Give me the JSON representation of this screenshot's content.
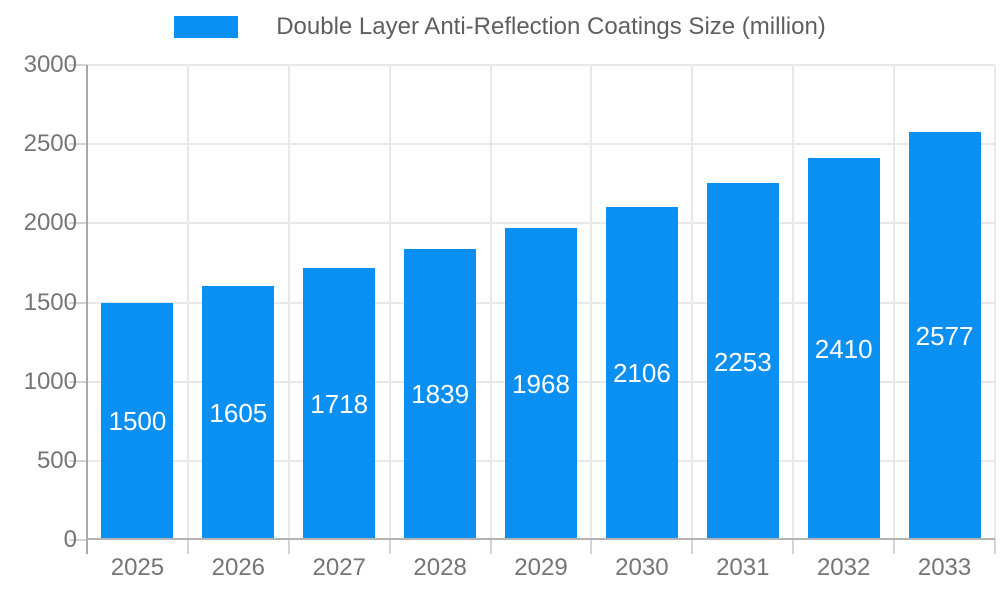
{
  "colors": {
    "bar": "#0a8ff2",
    "grid": "#e9e9e9",
    "axis": "#a8a8a8",
    "tick": "#d4d4d4",
    "axis_label_text": "#757575",
    "legend_text": "#5f5f5f",
    "value_label_text": "#ffffff",
    "background": "#ffffff"
  },
  "legend": {
    "label": "Double Layer Anti-Reflection Coatings Size (million)"
  },
  "chart_data": {
    "type": "bar",
    "title": "Double Layer Anti-Reflection Coatings Size (million)",
    "categories": [
      "2025",
      "2026",
      "2027",
      "2028",
      "2029",
      "2030",
      "2031",
      "2032",
      "2033"
    ],
    "values": [
      1500,
      1605,
      1718,
      1839,
      1968,
      2106,
      2253,
      2410,
      2577
    ],
    "xlabel": "",
    "ylabel": "",
    "ylim": [
      0,
      3000
    ],
    "yticks": [
      0,
      500,
      1000,
      1500,
      2000,
      2500,
      3000
    ],
    "grid": true,
    "legend_position": "top",
    "legend_entries": [
      "Double Layer Anti-Reflection Coatings Size (million)"
    ],
    "value_labels": "inside bars, white, vertically centered",
    "bar_color": "#0a8ff2"
  }
}
